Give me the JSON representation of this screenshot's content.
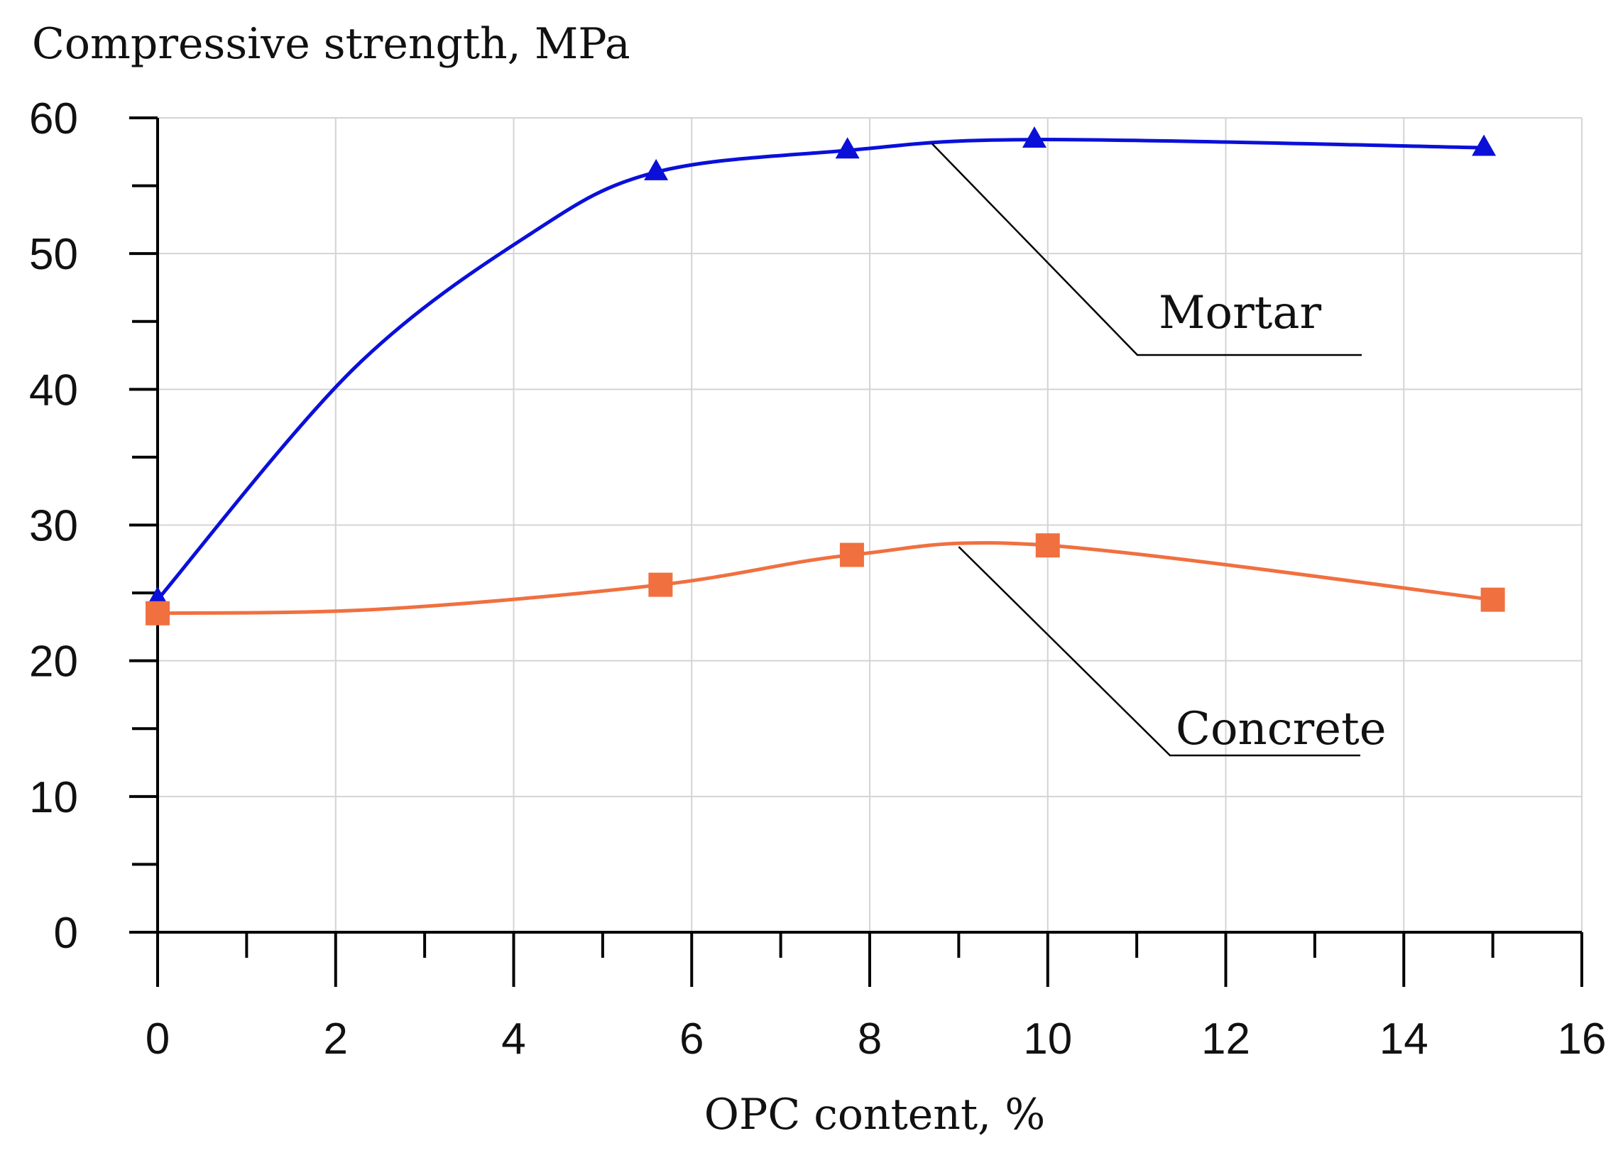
{
  "chart_data": {
    "type": "line",
    "title": "",
    "ylabel": "Compressive strength, MPa",
    "xlabel": "OPC content, %",
    "xlim": [
      0,
      16
    ],
    "ylim": [
      0,
      60
    ],
    "x_ticks": [
      0,
      2,
      4,
      6,
      8,
      10,
      12,
      14,
      16
    ],
    "y_ticks": [
      0,
      10,
      20,
      30,
      40,
      50,
      60
    ],
    "grid": true,
    "series": [
      {
        "name": "Mortar",
        "label": "Mortar",
        "color": "#0a10d8",
        "marker": "triangle",
        "x": [
          0,
          5.6,
          7.75,
          9.85,
          14.9
        ],
        "y": [
          24.5,
          56.0,
          57.6,
          58.4,
          57.8
        ]
      },
      {
        "name": "Concrete",
        "label": "Concrete",
        "color": "#f07040",
        "marker": "square",
        "x": [
          0,
          5.65,
          7.8,
          10.0,
          15.0
        ],
        "y": [
          23.5,
          25.6,
          27.8,
          28.5,
          24.5
        ]
      }
    ]
  }
}
